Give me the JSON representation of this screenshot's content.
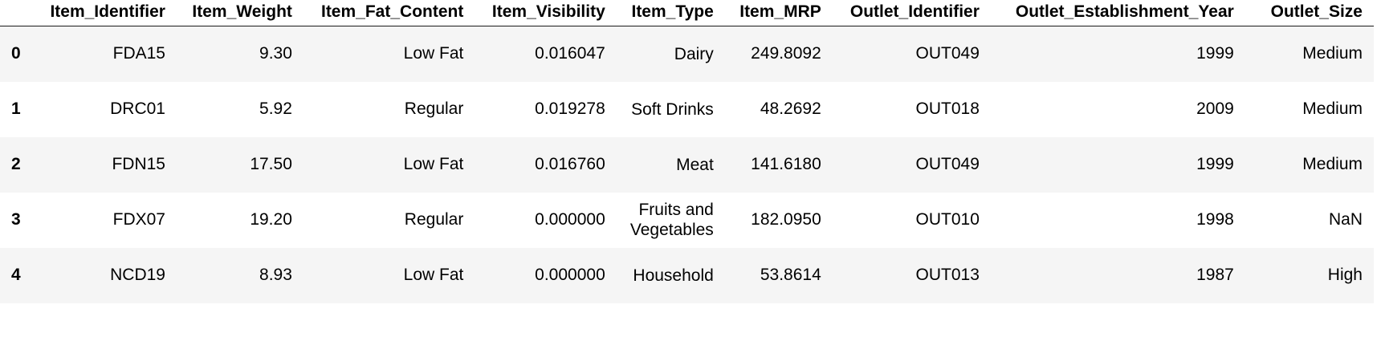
{
  "columns": [
    "Item_Identifier",
    "Item_Weight",
    "Item_Fat_Content",
    "Item_Visibility",
    "Item_Type",
    "Item_MRP",
    "Outlet_Identifier",
    "Outlet_Establishment_Year",
    "Outlet_Size"
  ],
  "rows": [
    {
      "index": "0",
      "Item_Identifier": "FDA15",
      "Item_Weight": "9.30",
      "Item_Fat_Content": "Low Fat",
      "Item_Visibility": "0.016047",
      "Item_Type": "Dairy",
      "Item_MRP": "249.8092",
      "Outlet_Identifier": "OUT049",
      "Outlet_Establishment_Year": "1999",
      "Outlet_Size": "Medium"
    },
    {
      "index": "1",
      "Item_Identifier": "DRC01",
      "Item_Weight": "5.92",
      "Item_Fat_Content": "Regular",
      "Item_Visibility": "0.019278",
      "Item_Type": "Soft Drinks",
      "Item_MRP": "48.2692",
      "Outlet_Identifier": "OUT018",
      "Outlet_Establishment_Year": "2009",
      "Outlet_Size": "Medium"
    },
    {
      "index": "2",
      "Item_Identifier": "FDN15",
      "Item_Weight": "17.50",
      "Item_Fat_Content": "Low Fat",
      "Item_Visibility": "0.016760",
      "Item_Type": "Meat",
      "Item_MRP": "141.6180",
      "Outlet_Identifier": "OUT049",
      "Outlet_Establishment_Year": "1999",
      "Outlet_Size": "Medium"
    },
    {
      "index": "3",
      "Item_Identifier": "FDX07",
      "Item_Weight": "19.20",
      "Item_Fat_Content": "Regular",
      "Item_Visibility": "0.000000",
      "Item_Type": "Fruits and Vegetables",
      "Item_MRP": "182.0950",
      "Outlet_Identifier": "OUT010",
      "Outlet_Establishment_Year": "1998",
      "Outlet_Size": "NaN"
    },
    {
      "index": "4",
      "Item_Identifier": "NCD19",
      "Item_Weight": "8.93",
      "Item_Fat_Content": "Low Fat",
      "Item_Visibility": "0.000000",
      "Item_Type": "Household",
      "Item_MRP": "53.8614",
      "Outlet_Identifier": "OUT013",
      "Outlet_Establishment_Year": "1987",
      "Outlet_Size": "High"
    }
  ]
}
